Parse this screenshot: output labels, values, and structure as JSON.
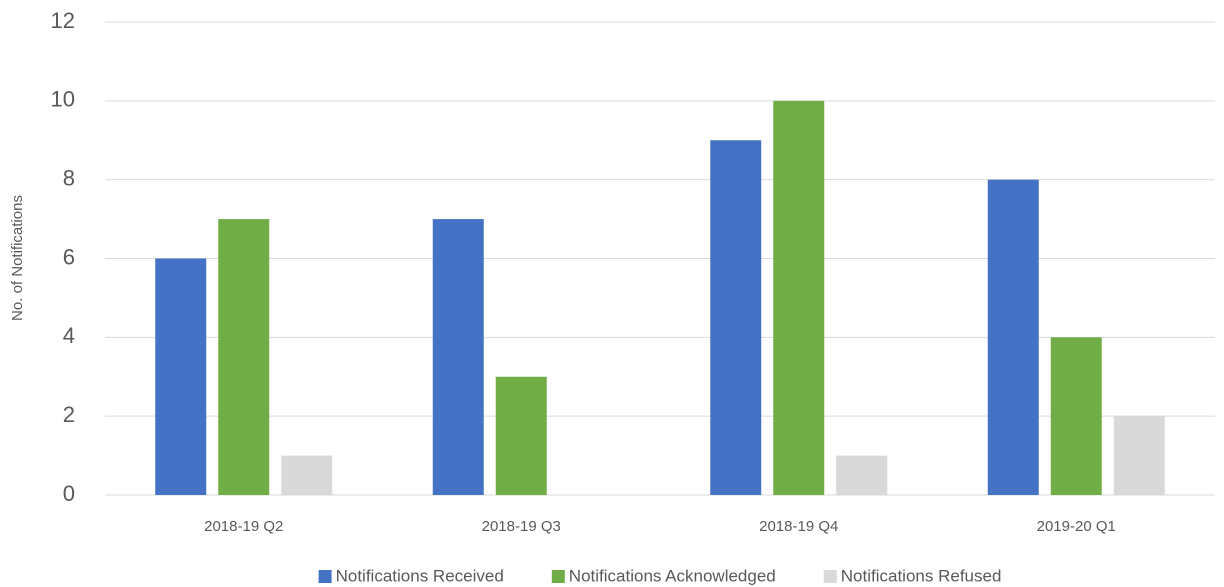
{
  "chart_data": {
    "type": "bar",
    "y_axis_label": "No. of Notifications",
    "categories": [
      "2018-19 Q2",
      "2018-19 Q3",
      "2018-19 Q4",
      "2019-20 Q1"
    ],
    "series": [
      {
        "name": "Notifications Received",
        "color": "#4472c4",
        "values": [
          6,
          7,
          9,
          8
        ]
      },
      {
        "name": "Notifications Acknowledged",
        "color": "#70ad47",
        "values": [
          7,
          3,
          10,
          4
        ]
      },
      {
        "name": "Notifications Refused",
        "color": "#d9d9d9",
        "values": [
          1,
          0,
          1,
          2
        ]
      }
    ],
    "ylim": [
      0,
      12
    ],
    "yticks": [
      0,
      2,
      4,
      6,
      8,
      10,
      12
    ],
    "grid": true,
    "legend": "bottom"
  }
}
